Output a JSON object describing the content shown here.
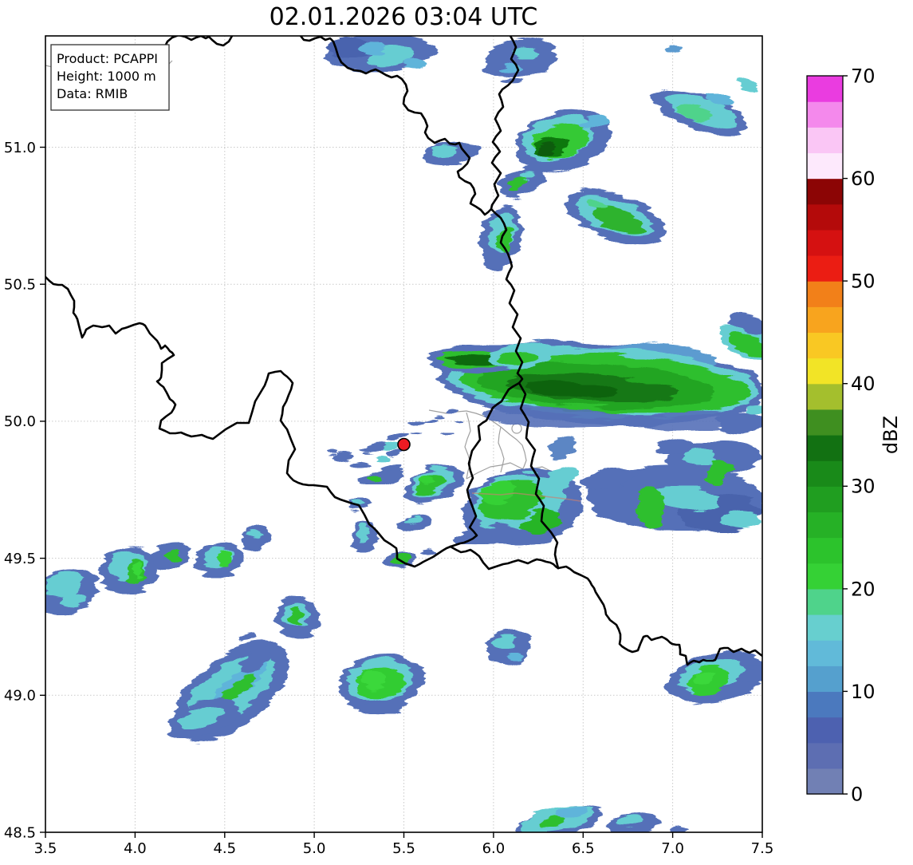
{
  "title": "02.01.2026 03:04 UTC",
  "info_box": {
    "product": "Product: PCAPPI",
    "height": "Height: 1000 m",
    "data_source": "Data: RMIB"
  },
  "axes": {
    "x_label_values": [
      "3.5",
      "4.0",
      "4.5",
      "5.0",
      "5.5",
      "6.0",
      "6.5",
      "7.0",
      "7.5"
    ],
    "y_label_values": [
      "48.5",
      "49.0",
      "49.5",
      "50.0",
      "50.5",
      "51.0"
    ],
    "x_range": [
      3.5,
      7.5
    ],
    "y_range": [
      48.5,
      51.41
    ]
  },
  "colorbar": {
    "label": "dBZ",
    "tick_labels": [
      "0",
      "10",
      "20",
      "30",
      "40",
      "50",
      "60",
      "70"
    ],
    "min_dbz": 0,
    "max_dbz": 70,
    "step_dbz": 2.5,
    "colors": [
      "#7180b4",
      "#5d6eb2",
      "#4d61b0",
      "#4b79be",
      "#55a0ce",
      "#61bad9",
      "#67cfcf",
      "#4fd38b",
      "#35d135",
      "#2cc32c",
      "#26b126",
      "#209e20",
      "#198a19",
      "#127112",
      "#3f8f20",
      "#a4bf2d",
      "#f2e426",
      "#f9c823",
      "#f8a41e",
      "#f28019",
      "#eb1d13",
      "#d51111",
      "#b40a0a",
      "#8c0505",
      "#fde9fc",
      "#fac6f5",
      "#f489ec",
      "#ea3ce0"
    ]
  },
  "radar_site": {
    "lon": 5.5,
    "lat": 49.92,
    "marker_color": "#ec1b23"
  },
  "map_colors": {
    "country_border": "#000000",
    "admin_border": "#a0a0a0",
    "grid": "#c9c9c9",
    "road": "#c97f72"
  },
  "chart_data": {
    "type": "radar_reflectivity_map",
    "units": "dBZ",
    "timestamp": "02.01.2026 03:04 UTC",
    "lon_range": [
      3.5,
      7.5
    ],
    "lat_range": [
      48.5,
      51.41
    ],
    "echo_regions": [
      {
        "lon": 5.35,
        "lat": 51.35,
        "desc": "streaky band at north edge",
        "max_dbz": 18
      },
      {
        "lon": 6.15,
        "lat": 51.33,
        "desc": "small cell at north edge",
        "max_dbz": 16
      },
      {
        "lon": 6.35,
        "lat": 51.0,
        "desc": "cell with dark-green core",
        "max_dbz": 33
      },
      {
        "lon": 7.15,
        "lat": 51.1,
        "desc": "diagonal streaky band",
        "max_dbz": 22
      },
      {
        "lon": 6.7,
        "lat": 50.78,
        "desc": "elongated band",
        "max_dbz": 28
      },
      {
        "lon": 6.45,
        "lat": 50.15,
        "desc": "large E-W rain band reaching east edge",
        "max_dbz": 35
      },
      {
        "lon": 5.55,
        "lat": 49.72,
        "desc": "cluster over southern Luxembourg",
        "max_dbz": 30
      },
      {
        "lon": 7.0,
        "lat": 49.68,
        "desc": "broken band to east edge",
        "max_dbz": 28
      },
      {
        "lon": 5.45,
        "lat": 49.92,
        "desc": "weak speckles near radar site",
        "max_dbz": 24
      },
      {
        "lon": 4.0,
        "lat": 49.45,
        "desc": "line of small convective cells",
        "max_dbz": 28
      },
      {
        "lon": 4.55,
        "lat": 49.0,
        "desc": "multicell cluster",
        "max_dbz": 25
      },
      {
        "lon": 5.35,
        "lat": 49.05,
        "desc": "round cell with green core",
        "max_dbz": 28
      },
      {
        "lon": 7.1,
        "lat": 49.0,
        "desc": "cell with green core",
        "max_dbz": 28
      },
      {
        "lon": 6.45,
        "lat": 48.52,
        "desc": "cells at south edge",
        "max_dbz": 22
      }
    ]
  }
}
